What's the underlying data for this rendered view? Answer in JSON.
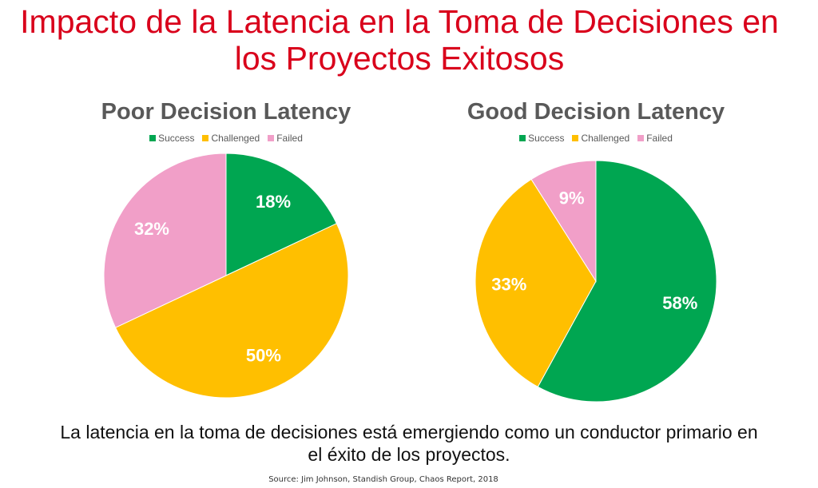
{
  "title": "Impacto de la Latencia en la Toma de Decisiones en los Proyectos Exitosos",
  "chart_data": [
    {
      "type": "pie",
      "title": "Poor Decision Latency",
      "categories": [
        "Success",
        "Challenged",
        "Failed"
      ],
      "values": [
        18,
        50,
        32
      ],
      "labels": [
        "18%",
        "50%",
        "32%"
      ],
      "colors": [
        "#00a651",
        "#ffbf00",
        "#f19fc8"
      ]
    },
    {
      "type": "pie",
      "title": "Good Decision Latency",
      "categories": [
        "Success",
        "Challenged",
        "Failed"
      ],
      "values": [
        58,
        33,
        9
      ],
      "labels": [
        "58%",
        "33%",
        "9%"
      ],
      "colors": [
        "#00a651",
        "#ffbf00",
        "#f19fc8"
      ]
    }
  ],
  "caption": "La latencia en la toma de decisiones está emergiendo como un conductor primario en el éxito de los proyectos.",
  "source": "Source: Jim Johnson, Standish Group, Chaos Report, 2018"
}
